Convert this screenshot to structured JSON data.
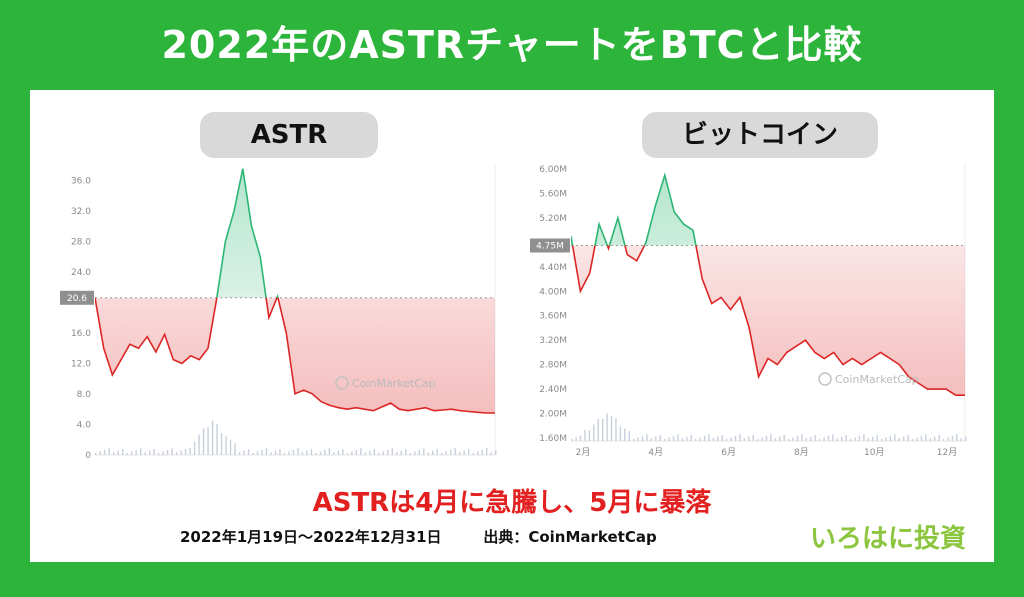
{
  "title": "2022年のASTRチャートをBTCと比較",
  "caption": "ASTRは4月に急騰し、5月に暴落",
  "date_range": "2022年1月19日〜2022年12月31日",
  "source": "出典：CoinMarketCap",
  "brand": "いろはに投資",
  "watermark": "CoinMarketCap",
  "colors": {
    "up": "#2bb673",
    "down": "#dc2626",
    "background": "#2db53b",
    "brand": "#8cc63f"
  },
  "chart_data": [
    {
      "type": "line",
      "title": "ASTR",
      "baseline": 20.6,
      "baseline_label": "20.6",
      "y_ticks": [
        0,
        4.0,
        8.0,
        12.0,
        16.0,
        20.0,
        24.0,
        28.0,
        32.0,
        36.0
      ],
      "y_tick_labels": [
        "0",
        "4.0",
        "8.0",
        "12.0",
        "16.0",
        "",
        "24.0",
        "28.0",
        "32.0",
        "36.0"
      ],
      "ylim": [
        0,
        38
      ],
      "x_ticks": [],
      "values": [
        20.6,
        14.0,
        10.5,
        12.5,
        14.5,
        14.0,
        15.5,
        13.5,
        15.8,
        12.5,
        12.0,
        13.0,
        12.5,
        14.0,
        20.5,
        28.0,
        32.0,
        37.5,
        30.0,
        26.0,
        18.0,
        20.8,
        16.0,
        8.0,
        8.5,
        8.0,
        7.0,
        6.5,
        6.2,
        6.0,
        6.2,
        6.0,
        5.8,
        6.3,
        6.8,
        6.0,
        5.8,
        6.0,
        6.2,
        5.8,
        5.9,
        6.0,
        5.8,
        5.7,
        5.6,
        5.5,
        5.5
      ]
    },
    {
      "type": "line",
      "title": "ビットコイン",
      "baseline": 4.75,
      "baseline_label": "4.75M",
      "y_ticks": [
        1.6,
        2.0,
        2.4,
        2.8,
        3.2,
        3.6,
        4.0,
        4.4,
        4.8,
        5.2,
        5.6,
        6.0
      ],
      "y_tick_labels": [
        "1.60M",
        "2.00M",
        "2.40M",
        "2.80M",
        "3.20M",
        "3.60M",
        "4.00M",
        "4.40M",
        "",
        "5.20M",
        "5.60M",
        "6.00M"
      ],
      "ylim": [
        1.55,
        6.1
      ],
      "x_ticks": [
        "2月",
        "4月",
        "6月",
        "8月",
        "10月",
        "12月"
      ],
      "values": [
        4.9,
        4.0,
        4.3,
        5.1,
        4.7,
        5.2,
        4.6,
        4.5,
        4.8,
        5.4,
        5.9,
        5.3,
        5.1,
        5.0,
        4.2,
        3.8,
        3.9,
        3.7,
        3.9,
        3.4,
        2.6,
        2.9,
        2.8,
        3.0,
        3.1,
        3.2,
        3.0,
        2.9,
        3.0,
        2.8,
        2.9,
        2.8,
        2.9,
        3.0,
        2.9,
        2.8,
        2.6,
        2.5,
        2.4,
        2.4,
        2.4,
        2.3,
        2.3
      ]
    }
  ]
}
